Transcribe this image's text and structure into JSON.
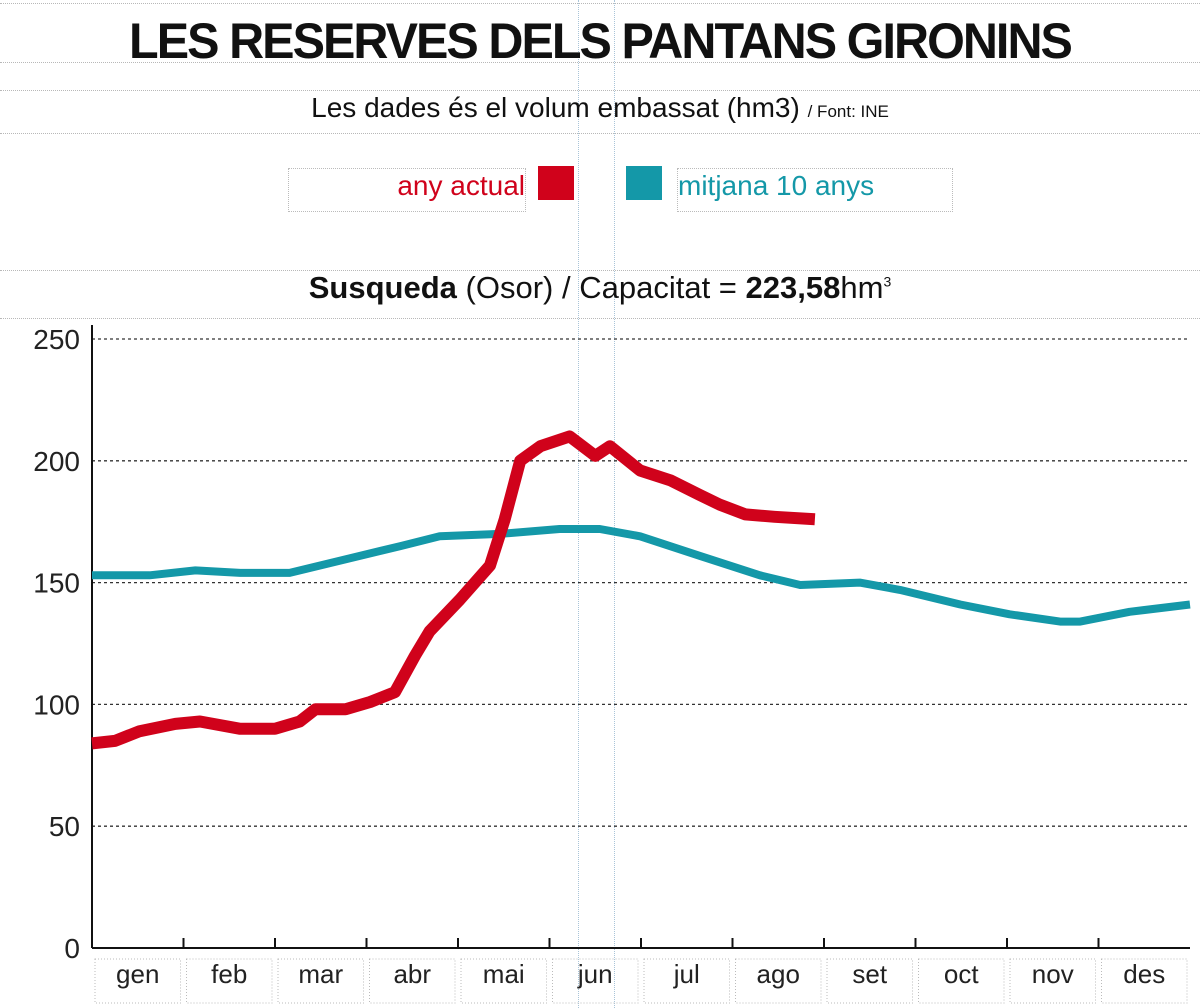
{
  "title": "LES RESERVES DELS PANTANS GIRONINS",
  "subtitle": "Les dades és el volum embassat (hm3)",
  "source": "/ Font: INE",
  "legend": {
    "current_label": "any actual",
    "average_label": "mitjana 10 anys",
    "current_color": "#d0021b",
    "average_color": "#1498a8"
  },
  "chart_header": {
    "reservoir": "Susqueda",
    "location": "(Osor)",
    "separator": "/",
    "capacity_label": "Capacitat =",
    "capacity_value": "223,58",
    "unit": "hm",
    "unit_exp": "3"
  },
  "chart_data": {
    "type": "line",
    "title": "Susqueda (Osor) / Capacitat = 223,58 hm3",
    "xlabel": "",
    "ylabel": "",
    "categories": [
      "gen",
      "feb",
      "mar",
      "abr",
      "mai",
      "jun",
      "jul",
      "ago",
      "set",
      "oct",
      "nov",
      "des"
    ],
    "xlim": [
      0,
      12
    ],
    "ylim": [
      0,
      250
    ],
    "yticks": [
      "0",
      "50",
      "100",
      "150",
      "200",
      "250"
    ],
    "grid": "horizontal dotted",
    "legend": "top",
    "series": [
      {
        "name": "any actual",
        "color": "#d0021b",
        "x": [
          0,
          0.25,
          0.52,
          0.91,
          1.18,
          1.62,
          2.0,
          2.27,
          2.44,
          2.77,
          3.04,
          3.31,
          3.53,
          3.69,
          4.02,
          4.35,
          4.51,
          4.68,
          4.9,
          5.22,
          5.5,
          5.66,
          5.99,
          6.32,
          6.64,
          6.86,
          7.14,
          7.46,
          7.9
        ],
        "y": [
          84,
          85,
          89,
          92,
          93,
          90,
          90,
          93,
          98,
          98,
          101,
          105,
          120,
          130,
          143,
          157,
          176,
          200,
          206,
          210,
          202,
          206,
          196,
          192,
          186,
          182,
          178,
          177,
          176
        ]
      },
      {
        "name": "mitjana 10 anys",
        "color": "#1498a8",
        "x": [
          0,
          0.63,
          1.13,
          1.62,
          2.16,
          2.82,
          3.37,
          3.8,
          4.46,
          5.11,
          5.55,
          5.99,
          6.64,
          7.3,
          7.74,
          8.39,
          8.83,
          9.49,
          10.03,
          10.58,
          10.8,
          11.34,
          12
        ],
        "y": [
          153,
          153,
          155,
          154,
          154,
          160,
          165,
          169,
          170,
          172,
          172,
          169,
          161,
          153,
          149,
          150,
          147,
          141,
          137,
          134,
          134,
          138,
          141
        ]
      }
    ]
  }
}
